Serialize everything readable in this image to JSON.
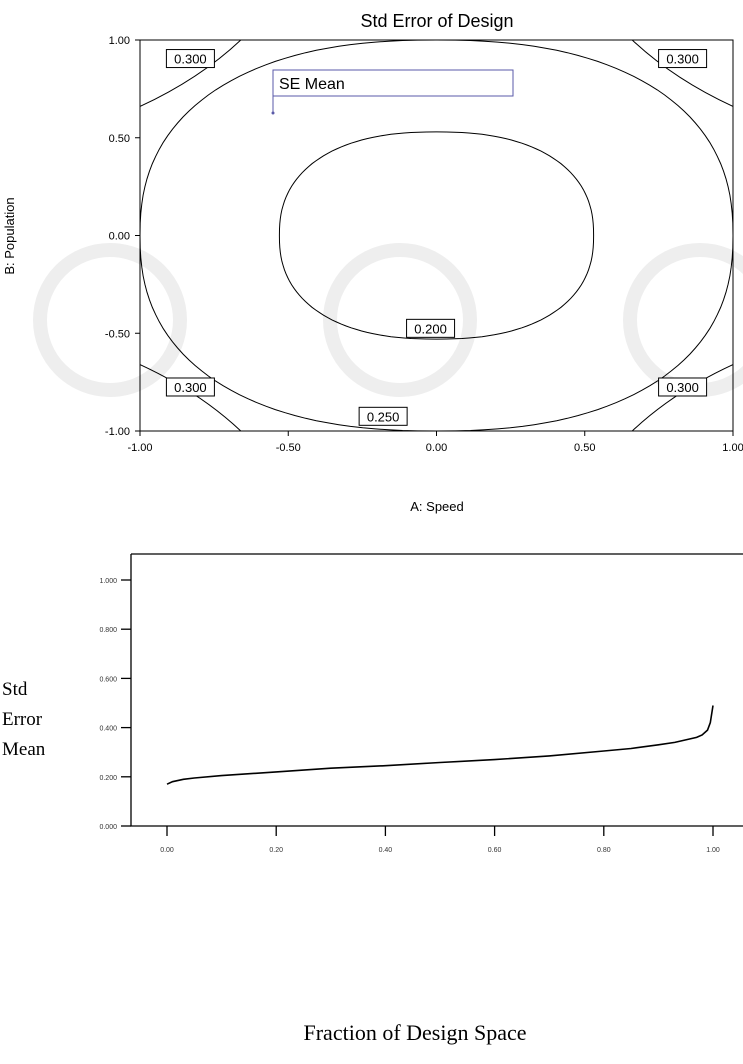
{
  "chart_data": [
    {
      "type": "contour",
      "title": "Std Error of Design",
      "xlabel": "A: Speed",
      "ylabel": "B: Population",
      "xlim": [
        -1.0,
        1.0
      ],
      "ylim": [
        -1.0,
        1.0
      ],
      "x_ticks": [
        "-1.00",
        "-0.50",
        "0.00",
        "0.50",
        "1.00"
      ],
      "y_ticks": [
        "1.00",
        "0.50",
        "0.00",
        "-0.50",
        "-1.00"
      ],
      "legend_box": "SE Mean",
      "contours": [
        {
          "level": 0.2,
          "label": "0.200",
          "label_copies": 1,
          "shape": "ellipse",
          "half_width_x": 0.53,
          "half_height_y": 0.53
        },
        {
          "level": 0.25,
          "label": "0.250",
          "label_copies": 1,
          "shape": "ellipse",
          "half_width_x": 1.0,
          "half_height_y": 1.0
        },
        {
          "level": 0.3,
          "label": "0.300",
          "label_copies": 4,
          "shape": "corner-arcs"
        }
      ],
      "contour_labels": [
        {
          "text": "0.200",
          "x": -0.02,
          "y": -0.48
        },
        {
          "text": "0.250",
          "x": -0.18,
          "y": -0.93
        },
        {
          "text": "0.300",
          "x": -0.83,
          "y": 0.9
        },
        {
          "text": "0.300",
          "x": 0.83,
          "y": 0.9
        },
        {
          "text": "0.300",
          "x": -0.83,
          "y": -0.78
        },
        {
          "text": "0.300",
          "x": 0.83,
          "y": -0.78
        }
      ],
      "grid": false
    },
    {
      "type": "line",
      "title": "",
      "xlabel": "Fraction of Design Space",
      "ylabel_lines": [
        "Std",
        "Error",
        "Mean"
      ],
      "xlim": [
        0.0,
        1.0
      ],
      "ylim": [
        0.0,
        1.0
      ],
      "x_ticks": [
        "0.00",
        "0.20",
        "0.40",
        "0.60",
        "0.80",
        "1.00"
      ],
      "y_ticks": [
        "1.000",
        "0.800",
        "0.600",
        "0.400",
        "0.200",
        "0.000"
      ],
      "series": [
        {
          "x": [
            0.0,
            0.01,
            0.03,
            0.05,
            0.1,
            0.2,
            0.3,
            0.4,
            0.5,
            0.6,
            0.7,
            0.8,
            0.85,
            0.9,
            0.93,
            0.95,
            0.97,
            0.98,
            0.99,
            0.995,
            1.0
          ],
          "values": [
            0.17,
            0.18,
            0.19,
            0.195,
            0.205,
            0.22,
            0.235,
            0.245,
            0.258,
            0.27,
            0.285,
            0.305,
            0.315,
            0.33,
            0.34,
            0.35,
            0.36,
            0.37,
            0.39,
            0.42,
            0.49
          ]
        }
      ],
      "grid": false
    }
  ]
}
